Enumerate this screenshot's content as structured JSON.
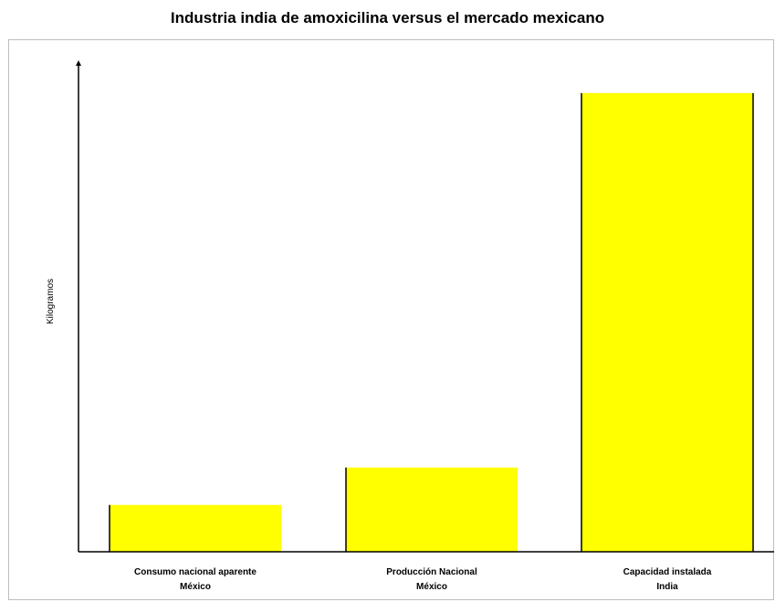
{
  "chart_data": {
    "type": "bar",
    "title": "Industria india de amoxicilina versus el mercado mexicano",
    "xlabel": "",
    "ylabel": "Kilogramos",
    "categories": [
      [
        "Consumo nacional aparente",
        "México"
      ],
      [
        "Producción Nacional",
        "México"
      ],
      [
        "Capacidad instalada",
        "India"
      ]
    ],
    "values": [
      1,
      1.8,
      9.8
    ],
    "ylim": [
      0,
      10.5
    ],
    "grid": false,
    "bar_color": "#ffff00",
    "bar_edge_color": "#000000"
  }
}
